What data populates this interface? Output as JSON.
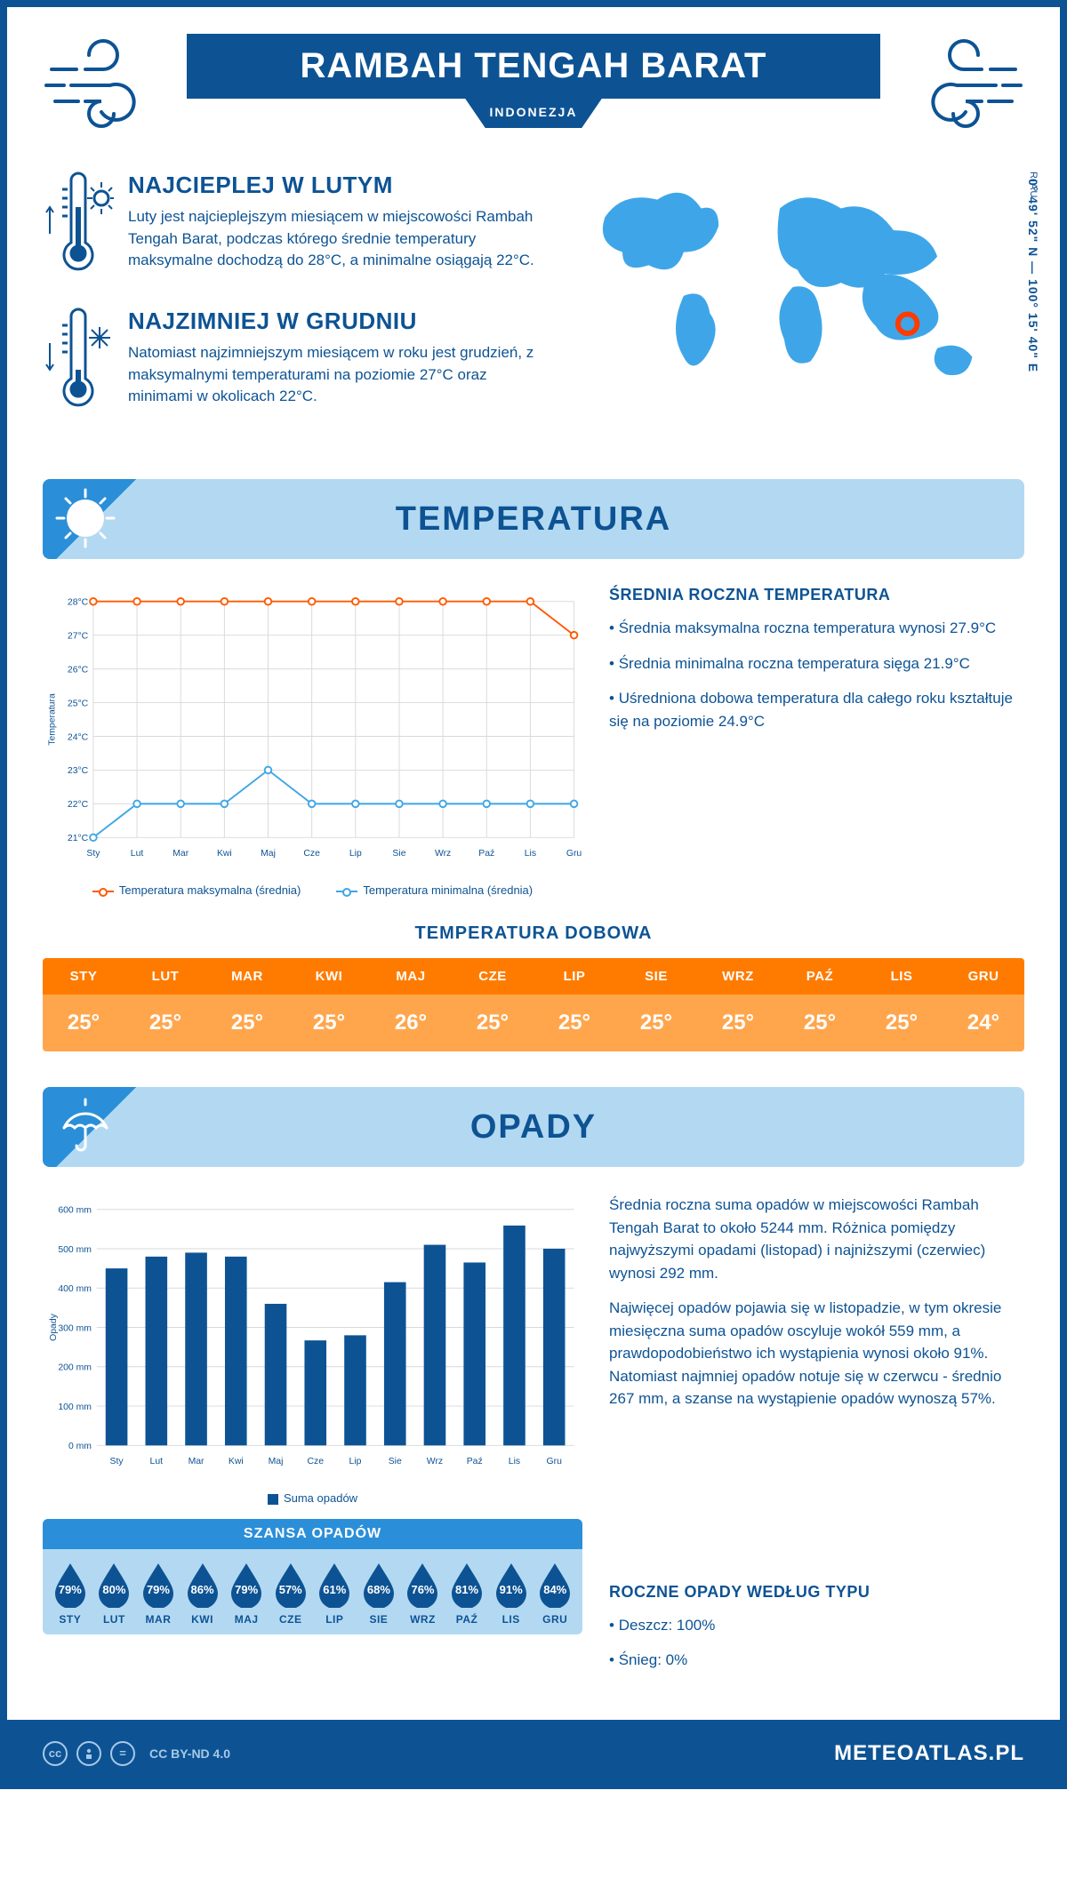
{
  "header": {
    "title": "RAMBAH TENGAH BARAT",
    "country": "INDONEZJA",
    "region": "RIAU",
    "coords": "0° 49' 52\" N — 100° 15' 40\" E"
  },
  "intro": {
    "warm": {
      "heading": "NAJCIEPLEJ W LUTYM",
      "text": "Luty jest najcieplejszym miesiącem w miejscowości Rambah Tengah Barat, podczas którego średnie temperatury maksymalne dochodzą do 28°C, a minimalne osiągają 22°C."
    },
    "cold": {
      "heading": "NAJZIMNIEJ W GRUDNIU",
      "text": "Natomiast najzimniejszym miesiącem w roku jest grudzień, z maksymalnymi temperaturami na poziomie 27°C oraz minimami w okolicach 22°C."
    }
  },
  "months_short": [
    "Sty",
    "Lut",
    "Mar",
    "Kwi",
    "Maj",
    "Cze",
    "Lip",
    "Sie",
    "Wrz",
    "Paź",
    "Lis",
    "Gru"
  ],
  "months_upper": [
    "STY",
    "LUT",
    "MAR",
    "KWI",
    "MAJ",
    "CZE",
    "LIP",
    "SIE",
    "WRZ",
    "PAŹ",
    "LIS",
    "GRU"
  ],
  "temperature": {
    "section_title": "TEMPERATURA",
    "chart": {
      "type": "line",
      "y_axis_label": "Temperatura",
      "ylim": [
        21,
        28
      ],
      "yticks": [
        "21°C",
        "22°C",
        "23°C",
        "24°C",
        "25°C",
        "26°C",
        "27°C",
        "28°C"
      ],
      "series": [
        {
          "name": "Temperatura maksymalna (średnia)",
          "color": "#ff5a00",
          "values": [
            28,
            28,
            28,
            28,
            28,
            28,
            28,
            28,
            28,
            28,
            28,
            27
          ]
        },
        {
          "name": "Temperatura minimalna (średnia)",
          "color": "#3ea6e8",
          "values": [
            21,
            22,
            22,
            22,
            23,
            22,
            22,
            22,
            22,
            22,
            22,
            22
          ]
        }
      ],
      "grid_color": "#d9d9d9",
      "marker_fill": "#ffffff",
      "background": "#ffffff",
      "line_width": 2,
      "marker_size": 4
    },
    "side": {
      "heading": "ŚREDNIA ROCZNA TEMPERATURA",
      "bullets": [
        "• Średnia maksymalna roczna temperatura wynosi 27.9°C",
        "• Średnia minimalna roczna temperatura sięga 21.9°C",
        "• Uśredniona dobowa temperatura dla całego roku kształtuje się na poziomie 24.9°C"
      ]
    },
    "daily": {
      "heading": "TEMPERATURA DOBOWA",
      "values": [
        "25°",
        "25°",
        "25°",
        "25°",
        "26°",
        "25°",
        "25°",
        "25°",
        "25°",
        "25°",
        "25°",
        "24°"
      ],
      "header_bg": "#ff7b00",
      "cell_bg": "#ffa64d",
      "text_color": "#ffffff"
    }
  },
  "precip": {
    "section_title": "OPADY",
    "chart": {
      "type": "bar",
      "y_axis_label": "Opady",
      "ylim": [
        0,
        600
      ],
      "ytick_step": 100,
      "yticks": [
        "0 mm",
        "100 mm",
        "200 mm",
        "300 mm",
        "400 mm",
        "500 mm",
        "600 mm"
      ],
      "bar_color": "#0d5394",
      "background": "#ffffff",
      "grid_color": "#d9d9d9",
      "bar_width": 0.55,
      "legend_label": "Suma opadów",
      "values": [
        450,
        480,
        490,
        480,
        360,
        267,
        280,
        415,
        510,
        465,
        559,
        500
      ]
    },
    "side": {
      "p1": "Średnia roczna suma opadów w miejscowości Rambah Tengah Barat to około 5244 mm. Różnica pomiędzy najwyższymi opadami (listopad) i najniższymi (czerwiec) wynosi 292 mm.",
      "p2": "Najwięcej opadów pojawia się w listopadzie, w tym okresie miesięczna suma opadów oscyluje wokół 559 mm, a prawdopodobieństwo ich wystąpienia wynosi około 91%. Natomiast najmniej opadów notuje się w czerwcu - średnio 267 mm, a szanse na wystąpienie opadów wynoszą 57%."
    },
    "chance": {
      "title": "SZANSA OPADÓW",
      "values": [
        "79%",
        "80%",
        "79%",
        "86%",
        "79%",
        "57%",
        "61%",
        "68%",
        "76%",
        "81%",
        "91%",
        "84%"
      ],
      "drop_color": "#0d5394",
      "panel_bg": "#b3d9f2",
      "title_bg": "#2a8fd8",
      "text_color": "#ffffff"
    },
    "types": {
      "heading": "ROCZNE OPADY WEDŁUG TYPU",
      "bullets": [
        "• Deszcz: 100%",
        "• Śnieg: 0%"
      ]
    }
  },
  "footer": {
    "license": "CC BY-ND 4.0",
    "site": "METEOATLAS.PL"
  },
  "colors": {
    "primary": "#0d5394",
    "light_blue": "#b3d9f2",
    "mid_blue": "#2a8fd8",
    "map_blue": "#3ea6e8",
    "marker_ring": "#ff3b00"
  }
}
